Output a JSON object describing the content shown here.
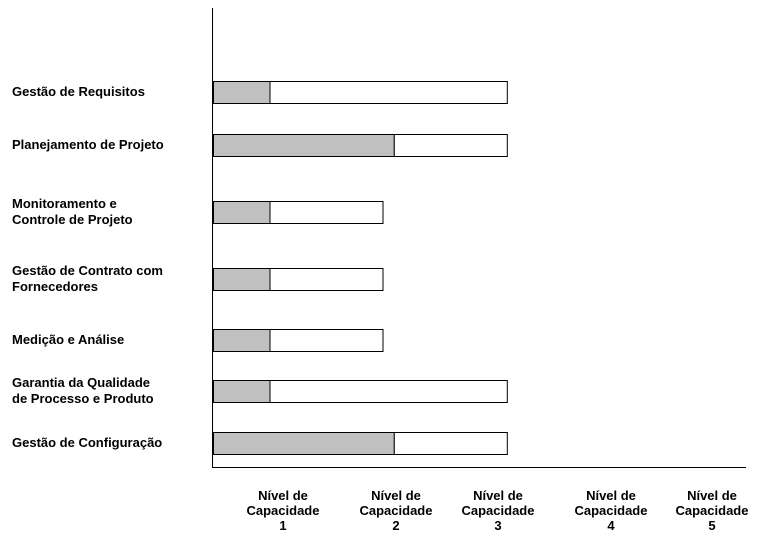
{
  "chart_data": {
    "type": "bar",
    "orientation": "horizontal",
    "stacked": true,
    "categories": [
      "Gestão de Requisitos",
      "Planejamento de Projeto",
      "Monitoramento e\nControle de Projeto",
      "Gestão de Contrato com\nFornecedores",
      "Medição e Análise",
      "Garantia da Qualidade\nde Processo e Produto",
      "Gestão de Configuração"
    ],
    "series": [
      {
        "color": "#c0c0c0",
        "values": [
          0.5,
          1.6,
          0.5,
          0.5,
          0.5,
          0.5,
          1.6
        ]
      },
      {
        "color": "#ffffff",
        "values": [
          2.1,
          1.0,
          1.0,
          1.0,
          1.0,
          2.1,
          1.0
        ]
      }
    ],
    "xticks": [
      "Nível de\nCapacidade\n1",
      "Nível de\nCapacidade\n2",
      "Nível de\nCapacidade\n3",
      "Nível de\nCapacidade\n4",
      "Nível de\nCapacidade\n5"
    ],
    "xlim": [
      0,
      5
    ],
    "grid": false,
    "legend": "none"
  }
}
